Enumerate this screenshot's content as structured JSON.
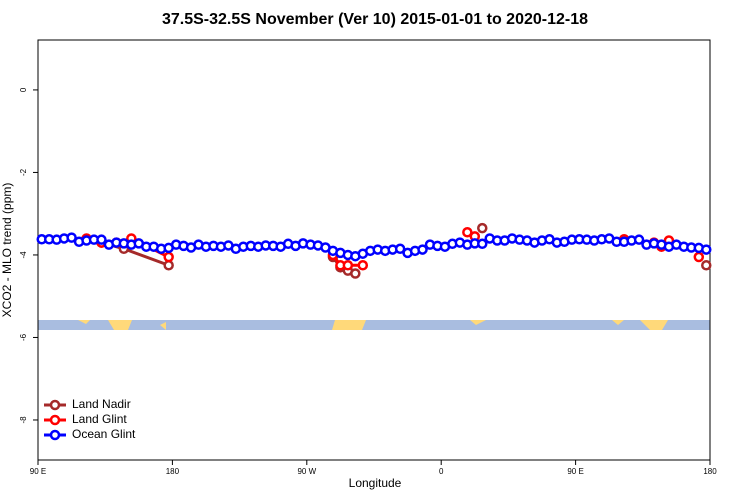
{
  "chart_data": {
    "type": "line",
    "title": "37.5S-32.5S November (Ver 10)   2015-01-01 to 2020-12-18",
    "xlabel": "Longitude",
    "ylabel": "XCO2 - MLO trend (ppm)",
    "xlim": [
      90,
      540
    ],
    "xticks": [
      {
        "value": 90,
        "label": "90 E"
      },
      {
        "value": 180,
        "label": "180"
      },
      {
        "value": 270,
        "label": "90 W"
      },
      {
        "value": 360,
        "label": "0"
      },
      {
        "value": 450,
        "label": "90 E"
      },
      {
        "value": 540,
        "label": "180"
      }
    ],
    "ylim": [
      -8.97,
      1.21
    ],
    "yticks": [
      0,
      -2,
      -4,
      -6,
      -8
    ],
    "legend": "bottom-left",
    "series": [
      {
        "name": "Land Nadir",
        "color": "#a52a2a",
        "x": [
          132.5,
          147.5,
          177.5,
          null,
          287.5,
          292.5,
          297.5,
          302.5,
          null,
          387.5,
          null,
          537.5
        ],
        "values": [
          -3.7,
          -3.85,
          -4.25,
          null,
          -4.05,
          -4.3,
          -4.38,
          -4.45,
          null,
          -3.35,
          null,
          -4.25
        ]
      },
      {
        "name": "Land Glint",
        "color": "#ff0000",
        "x": [
          122.5,
          132.5,
          142.5,
          152.5,
          177.5,
          null,
          287.5,
          292.5,
          297.5,
          307.5,
          null,
          377.5,
          382.5,
          null,
          482.5,
          502.5,
          507.5,
          512.5,
          null,
          532.5
        ],
        "values": [
          -3.6,
          -3.7,
          -3.7,
          -3.6,
          -4.05,
          null,
          -4.0,
          -4.25,
          -4.25,
          -4.25,
          null,
          -3.45,
          -3.55,
          null,
          -3.62,
          -3.7,
          -3.8,
          -3.65,
          null,
          -4.05
        ]
      },
      {
        "name": "Ocean Glint",
        "color": "#0000ff",
        "x": [
          92.5,
          97.5,
          102.5,
          107.5,
          112.5,
          117.5,
          122.5,
          127.5,
          132.5,
          137.5,
          142.5,
          147.5,
          152.5,
          157.5,
          162.5,
          167.5,
          172.5,
          177.5,
          182.5,
          187.5,
          192.5,
          197.5,
          202.5,
          207.5,
          212.5,
          217.5,
          222.5,
          227.5,
          232.5,
          237.5,
          242.5,
          247.5,
          252.5,
          257.5,
          262.5,
          267.5,
          272.5,
          277.5,
          282.5,
          287.5,
          292.5,
          297.5,
          302.5,
          307.5,
          312.5,
          317.5,
          322.5,
          327.5,
          332.5,
          337.5,
          342.5,
          347.5,
          352.5,
          357.5,
          362.5,
          367.5,
          372.5,
          377.5,
          382.5,
          387.5,
          392.5,
          397.5,
          402.5,
          407.5,
          412.5,
          417.5,
          422.5,
          427.5,
          432.5,
          437.5,
          442.5,
          447.5,
          452.5,
          457.5,
          462.5,
          467.5,
          472.5,
          477.5,
          482.5,
          487.5,
          492.5,
          497.5,
          502.5,
          507.5,
          512.5,
          517.5,
          522.5,
          527.5,
          532.5,
          537.5
        ],
        "values": [
          -3.62,
          -3.62,
          -3.63,
          -3.6,
          -3.58,
          -3.68,
          -3.65,
          -3.63,
          -3.63,
          -3.75,
          -3.7,
          -3.72,
          -3.75,
          -3.72,
          -3.8,
          -3.8,
          -3.85,
          -3.83,
          -3.75,
          -3.78,
          -3.82,
          -3.75,
          -3.8,
          -3.78,
          -3.8,
          -3.77,
          -3.85,
          -3.8,
          -3.78,
          -3.8,
          -3.77,
          -3.78,
          -3.8,
          -3.73,
          -3.78,
          -3.72,
          -3.75,
          -3.77,
          -3.82,
          -3.9,
          -3.95,
          -4.0,
          -4.03,
          -3.97,
          -3.9,
          -3.87,
          -3.9,
          -3.87,
          -3.85,
          -3.95,
          -3.9,
          -3.87,
          -3.75,
          -3.78,
          -3.8,
          -3.73,
          -3.7,
          -3.75,
          -3.72,
          -3.73,
          -3.6,
          -3.65,
          -3.65,
          -3.6,
          -3.63,
          -3.65,
          -3.7,
          -3.65,
          -3.62,
          -3.7,
          -3.68,
          -3.63,
          -3.62,
          -3.63,
          -3.65,
          -3.62,
          -3.6,
          -3.68,
          -3.68,
          -3.65,
          -3.63,
          -3.75,
          -3.72,
          -3.75,
          -3.8,
          -3.75,
          -3.8,
          -3.82,
          -3.83,
          -3.87
        ]
      }
    ]
  }
}
